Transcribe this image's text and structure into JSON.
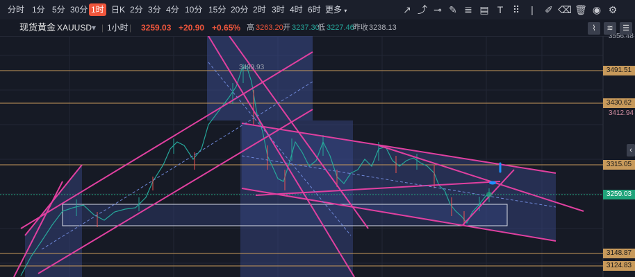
{
  "timeframes": [
    "分时",
    "1分",
    "5分",
    "30分",
    "1时",
    "日K",
    "2分",
    "3分",
    "4分",
    "10分",
    "15分",
    "20分",
    "2时",
    "3时",
    "4时",
    "6时",
    "更多"
  ],
  "active_timeframe": "1时",
  "drawing_tools": [
    "line-icon",
    "ray-icon",
    "horizontal-line-icon",
    "pen-icon",
    "fibonacci-icon",
    "measure-icon",
    "more-grid-icon",
    "edit-icon",
    "eraser-icon",
    "delete-icon",
    "eye-icon",
    "settings-icon"
  ],
  "instrument": {
    "name": "现货黄金",
    "symbol": "XAUUSD",
    "dropdown": "▾",
    "interval": "1小时",
    "price": "3259.03",
    "change": "+20.90",
    "change_pct": "+0.65%",
    "high_label": "高",
    "high": "3263.20",
    "open_label": "开",
    "open": "3237.30",
    "low_label": "低",
    "low": "3227.46",
    "prev_label": "昨收",
    "prev_close": "3238.13"
  },
  "price_levels": {
    "top_partial": "3556.48",
    "l1": "3491.51",
    "l2": "3430.62",
    "l2_sub": "3412.94",
    "l3": "3315.05",
    "current": "3259.03",
    "l4": "3148.87",
    "l5": "3124.83"
  },
  "peak_label": "3499.93",
  "colors": {
    "background": "#161a25",
    "level_line": "#c89a5b",
    "channel": "#e040a0",
    "channel_fill": "#3a4a8a",
    "up_candle": "#26a69a",
    "down_candle": "#ef5350",
    "current_price": "#1fa37a",
    "accent": "#f0563c"
  }
}
